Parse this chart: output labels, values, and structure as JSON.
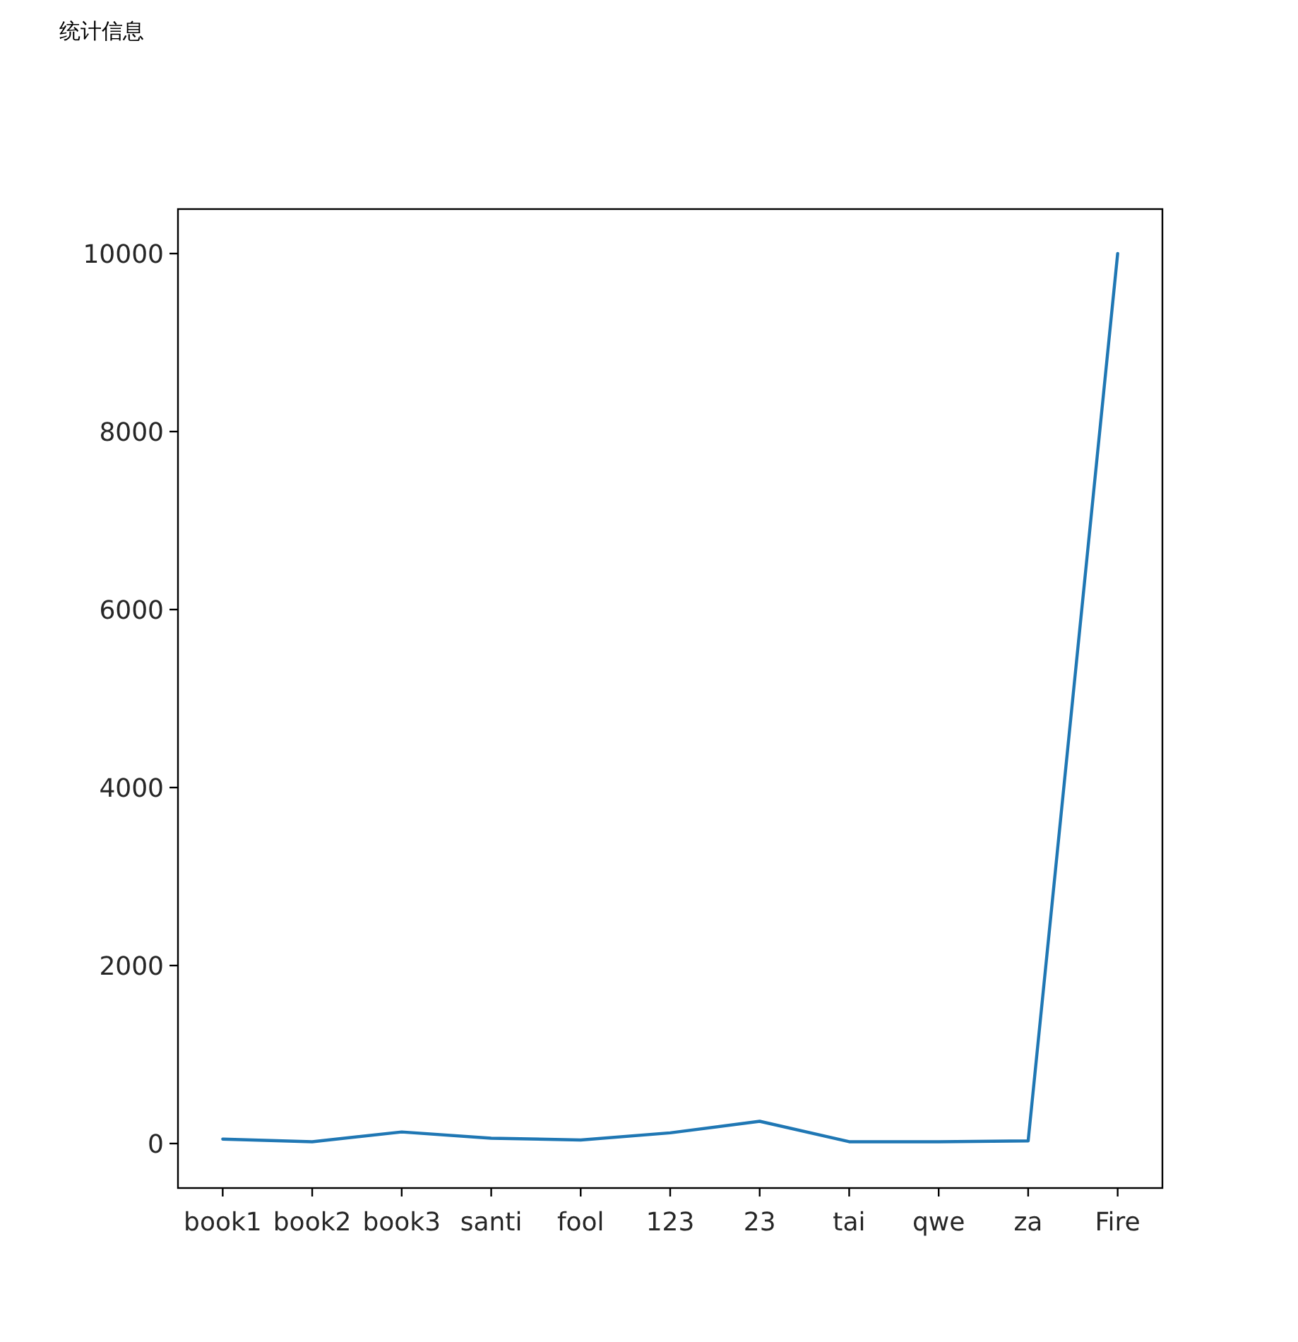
{
  "chart_data": {
    "type": "line",
    "title": "统计信息",
    "categories": [
      "book1",
      "book2",
      "book3",
      "santi",
      "fool",
      "123",
      "23",
      "tai",
      "qwe",
      "za",
      "Fire"
    ],
    "series": [
      {
        "color": "#1f77b4",
        "values": [
          50,
          20,
          130,
          60,
          40,
          120,
          250,
          20,
          20,
          30,
          10000
        ]
      }
    ],
    "ylim": [
      -500,
      10500
    ],
    "yticks": [
      0,
      2000,
      4000,
      6000,
      8000,
      10000
    ]
  }
}
